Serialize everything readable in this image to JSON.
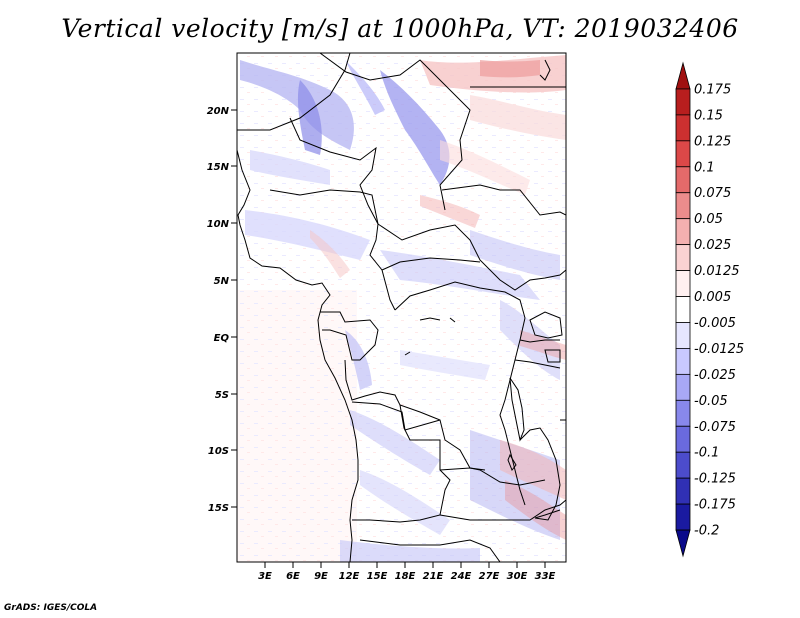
{
  "title": "Vertical velocity [m/s] at 1000hPa, VT: 2019032406",
  "footer": "GrADS: IGES/COLA",
  "map": {
    "lon_range": [
      0,
      35
    ],
    "lat_range": [
      -20,
      25
    ],
    "lat_ticks": [
      "20N",
      "15N",
      "10N",
      "5N",
      "EQ",
      "5S",
      "10S",
      "15S"
    ],
    "lon_ticks": [
      "3E",
      "6E",
      "9E",
      "12E",
      "15E",
      "18E",
      "21E",
      "24E",
      "27E",
      "30E",
      "33E"
    ],
    "field": "vertical velocity",
    "positive_color": "red",
    "negative_color": "blue"
  },
  "colorbar": {
    "labels": [
      "0.175",
      "0.15",
      "0.125",
      "0.1",
      "0.075",
      "0.05",
      "0.025",
      "0.0125",
      "0.005",
      "-0.005",
      "-0.0125",
      "-0.025",
      "-0.05",
      "-0.075",
      "-0.1",
      "-0.125",
      "-0.175",
      "-0.2"
    ],
    "colors": [
      "#a01010",
      "#b81e1e",
      "#cc3030",
      "#dc4848",
      "#e46a6a",
      "#ec8c8c",
      "#f4b0b0",
      "#fad2d2",
      "#fff0f0",
      "#ffffff",
      "#e6e6ff",
      "#c8c8ff",
      "#a8a8f6",
      "#8888ec",
      "#6a6ade",
      "#4c4ccc",
      "#3030b4",
      "#1a1aa0",
      "#0a0a8a"
    ]
  }
}
